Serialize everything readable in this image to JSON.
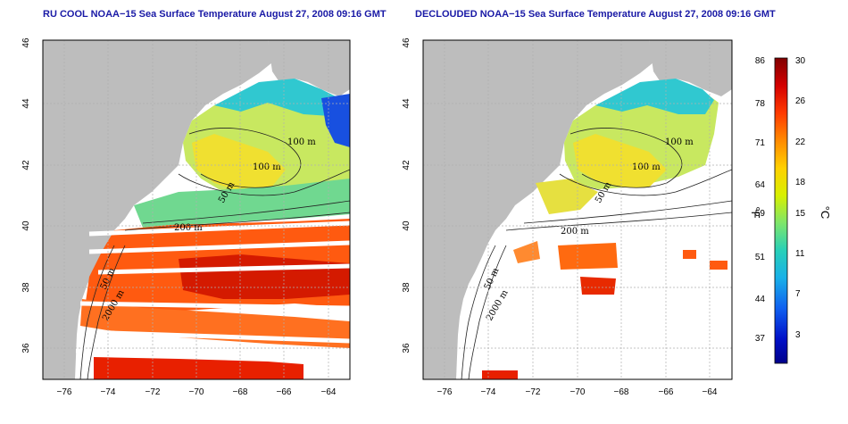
{
  "panels": [
    {
      "title": "RU COOL NOAA−15 Sea Surface Temperature August 27, 2008 09:16 GMT",
      "variant": "raw"
    },
    {
      "title": "DECLOUDED NOAA−15 Sea Surface Temperature August 27, 2008 09:16 GMT",
      "variant": "declouded"
    }
  ],
  "axes": {
    "lon_ticks": [
      "−76",
      "−74",
      "−72",
      "−70",
      "−68",
      "−66",
      "−64"
    ],
    "lon_values": [
      -76,
      -74,
      -72,
      -70,
      -68,
      -66,
      -64
    ],
    "lat_ticks": [
      "36",
      "38",
      "40",
      "42",
      "44",
      "46"
    ],
    "lat_values": [
      36,
      38,
      40,
      42,
      44,
      46
    ],
    "lon_range": [
      -77,
      -63
    ],
    "lat_range": [
      35,
      46
    ]
  },
  "contour_labels_left": [
    "100 m",
    "100 m",
    "50 m",
    "200 m",
    "50 m",
    "2000 m"
  ],
  "contour_labels_right": [
    "100 m",
    "100 m",
    "50 m",
    "200 m",
    "50 m",
    "2000 m"
  ],
  "colorbar": {
    "fahrenheit_labels": [
      "86",
      "78",
      "71",
      "64",
      "59",
      "51",
      "44",
      "37"
    ],
    "celsius_labels": [
      "30",
      "26",
      "22",
      "18",
      "15",
      "11",
      "7",
      "3"
    ],
    "fahrenheit_unit": "°F",
    "celsius_unit": "°C",
    "stops": [
      "#800000",
      "#d40000",
      "#ff3a00",
      "#ff8a00",
      "#ffd000",
      "#d8f000",
      "#7ee66a",
      "#28d0b8",
      "#18b0e8",
      "#1060f0",
      "#0010c8",
      "#00008a"
    ]
  },
  "colors": {
    "land": "#bdbdbd",
    "ocean_background": "#ffffff",
    "grid": "#b0b0b0",
    "title": "#1a1aa6"
  }
}
